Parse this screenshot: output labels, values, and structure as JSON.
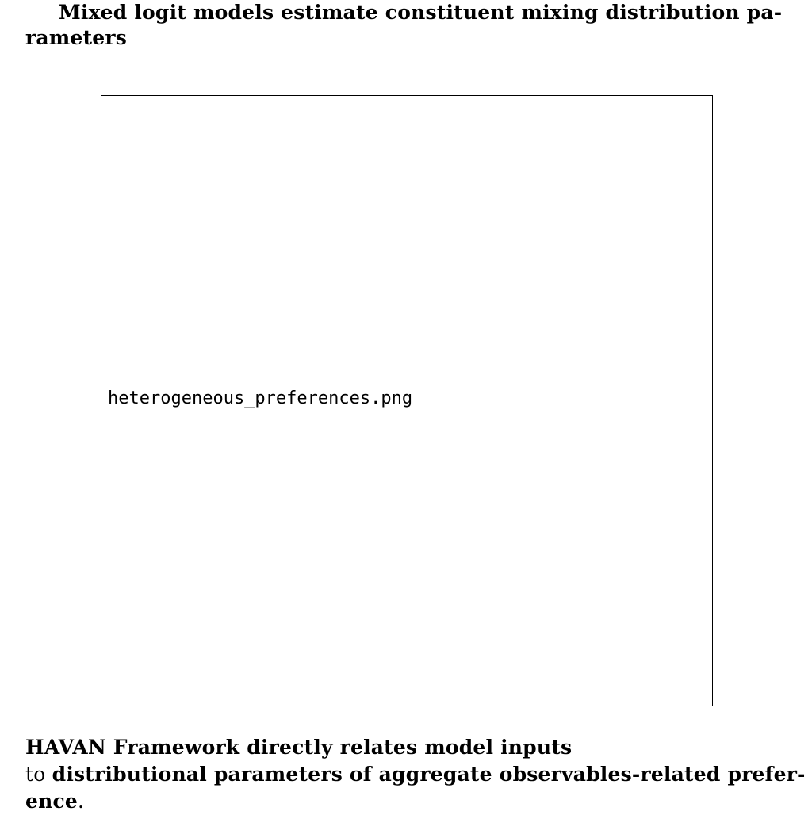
{
  "heading": {
    "line1": "Mixed logit models estimate constituent mixing distribution pa-",
    "line2": "rameters"
  },
  "figure": {
    "filename": "heterogeneous_preferences.png"
  },
  "caption": {
    "line1_bold": "HAVAN Framework directly relates model inputs",
    "line2_plain": "to",
    "line2_bold": "distributional parameters of aggregate observables-related prefer-",
    "line3_bold": "ence",
    "line3_plain": "."
  }
}
